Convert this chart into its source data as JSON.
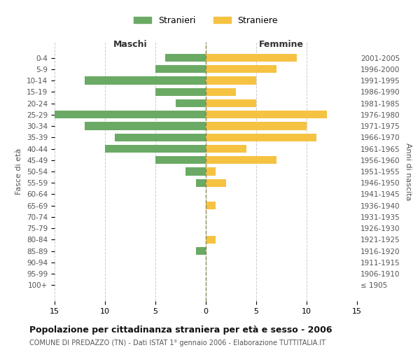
{
  "age_groups": [
    "100+",
    "95-99",
    "90-94",
    "85-89",
    "80-84",
    "75-79",
    "70-74",
    "65-69",
    "60-64",
    "55-59",
    "50-54",
    "45-49",
    "40-44",
    "35-39",
    "30-34",
    "25-29",
    "20-24",
    "15-19",
    "10-14",
    "5-9",
    "0-4"
  ],
  "birth_years": [
    "≤ 1905",
    "1906-1910",
    "1911-1915",
    "1916-1920",
    "1921-1925",
    "1926-1930",
    "1931-1935",
    "1936-1940",
    "1941-1945",
    "1946-1950",
    "1951-1955",
    "1956-1960",
    "1961-1965",
    "1966-1970",
    "1971-1975",
    "1976-1980",
    "1981-1985",
    "1986-1990",
    "1991-1995",
    "1996-2000",
    "2001-2005"
  ],
  "maschi": [
    0,
    0,
    0,
    1,
    0,
    0,
    0,
    0,
    0,
    1,
    2,
    5,
    10,
    9,
    12,
    15,
    3,
    5,
    12,
    5,
    4
  ],
  "femmine": [
    0,
    0,
    0,
    0,
    1,
    0,
    0,
    1,
    0,
    2,
    1,
    7,
    4,
    11,
    10,
    12,
    5,
    3,
    5,
    7,
    9
  ],
  "color_maschi": "#6aaa64",
  "color_femmine": "#f5c242",
  "title": "Popolazione per cittadinanza straniera per età e sesso - 2006",
  "subtitle": "COMUNE DI PREDAZZO (TN) - Dati ISTAT 1° gennaio 2006 - Elaborazione TUTTITALIA.IT",
  "xlabel_left": "Maschi",
  "xlabel_right": "Femmine",
  "ylabel_left": "Fasce di età",
  "ylabel_right": "Anni di nascita",
  "legend_maschi": "Stranieri",
  "legend_femmine": "Straniere",
  "xlim": 15,
  "bg_color": "#ffffff",
  "grid_color": "#cccccc"
}
